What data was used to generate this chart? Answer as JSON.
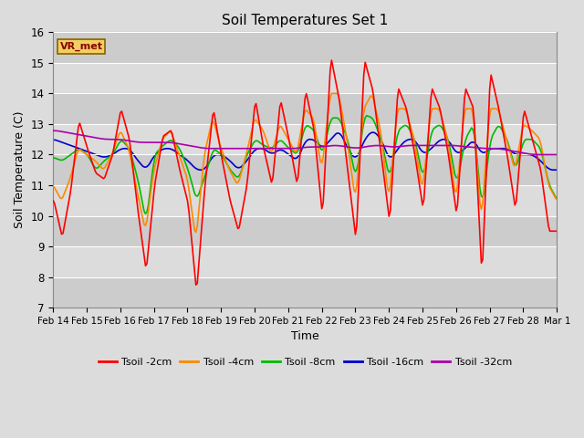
{
  "title": "Soil Temperatures Set 1",
  "xlabel": "Time",
  "ylabel": "Soil Temperature (C)",
  "ylim": [
    7.0,
    16.0
  ],
  "yticks": [
    7.0,
    8.0,
    9.0,
    10.0,
    11.0,
    12.0,
    13.0,
    14.0,
    15.0,
    16.0
  ],
  "background_color": "#dcdcdc",
  "plot_bg_color": "#dcdcdc",
  "station_label": "VR_met",
  "legend_labels": [
    "Tsoil -2cm",
    "Tsoil -4cm",
    "Tsoil -8cm",
    "Tsoil -16cm",
    "Tsoil -32cm"
  ],
  "line_colors": [
    "#ff0000",
    "#ff8800",
    "#00bb00",
    "#0000cc",
    "#aa00aa"
  ],
  "xtick_labels": [
    "Feb 14",
    "Feb 15",
    "Feb 16",
    "Feb 17",
    "Feb 18",
    "Feb 19",
    "Feb 20",
    "Feb 21",
    "Feb 22",
    "Feb 23",
    "Feb 24",
    "Feb 25",
    "Feb 26",
    "Feb 27",
    "Feb 28",
    "Mar 1"
  ]
}
